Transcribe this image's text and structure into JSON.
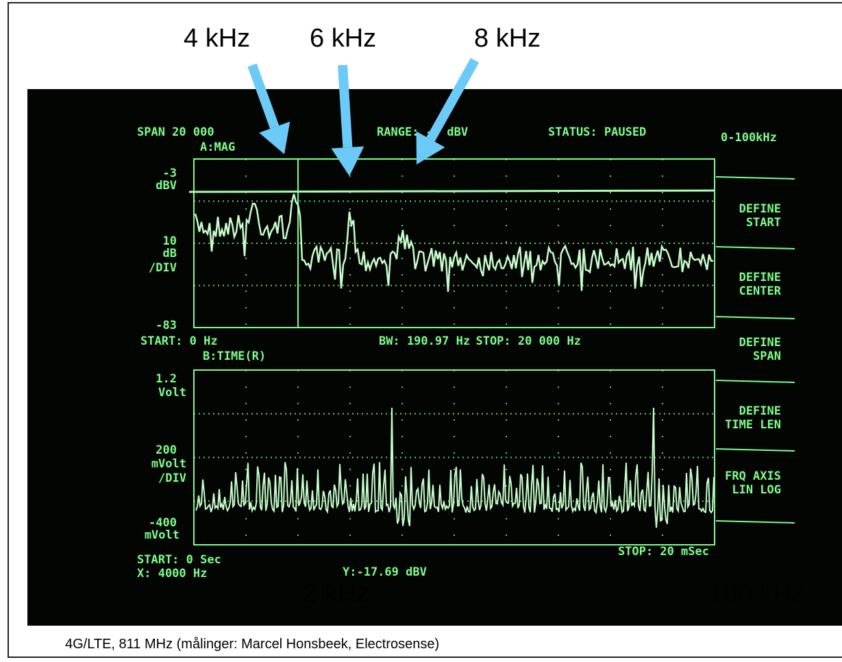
{
  "annotations": [
    "4 kHz",
    "6 kHz",
    "8 kHz",
    "2 kHz",
    "100 kHz"
  ],
  "screen": {
    "header": [
      "SPAN  20 000",
      "A:MAG",
      "RANGE: -3 dBV",
      "STATUS: PAUSED",
      "0-100kHz"
    ],
    "top_axis": [
      "-3",
      "dBV",
      "10",
      "dB",
      "/DIV",
      "-83"
    ],
    "top_footer": [
      "START: 0 Hz",
      "BW: 190.97 Hz",
      "STOP: 20 000 Hz"
    ],
    "bottom_title": "B:TIME(R)",
    "bottom_axis": [
      "1.2",
      "Volt",
      "200",
      "mVolt",
      "/DIV",
      "-400",
      "mVolt"
    ],
    "bottom_footer": [
      "START: 0  Sec",
      "STOP: 20 mSec",
      "X: 4000 Hz",
      "Y:-17.69 dBV"
    ],
    "softkeys": [
      [
        "DEFINE",
        "START"
      ],
      [
        "DEFINE",
        "CENTER"
      ],
      [
        "DEFINE",
        "SPAN"
      ],
      [
        "DEFINE",
        "TIME LEN"
      ],
      [
        "FRQ AXIS",
        "LIN  LOG"
      ]
    ]
  },
  "caption": "4G/LTE, 811 MHz (målinger: Marcel Honsbeek, Electrosense)"
}
